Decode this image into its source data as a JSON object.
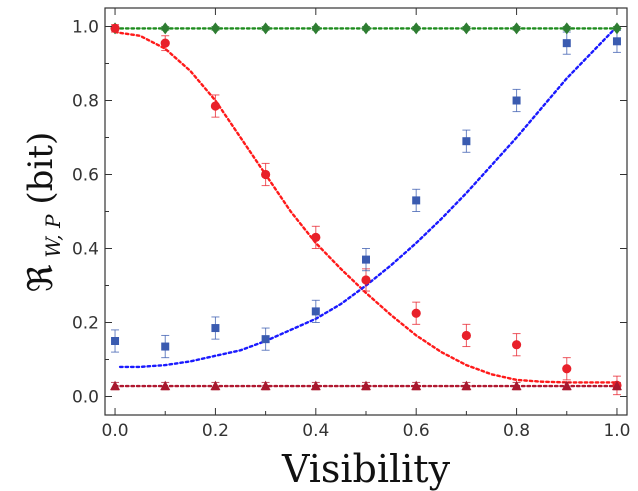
{
  "chart_data": {
    "type": "scatter",
    "title": "",
    "xlabel": "Visibility",
    "ylabel": "ℜ ",
    "ylabel_sub": "W, P",
    "ylabel_unit": "(bit)",
    "xlim": [
      -0.02,
      1.02
    ],
    "ylim": [
      -0.05,
      1.05
    ],
    "xticks": [
      "0.0",
      "0.2",
      "0.4",
      "0.6",
      "0.8",
      "1.0"
    ],
    "yticks": [
      "0.0",
      "0.2",
      "0.4",
      "0.6",
      "0.8",
      "1.0"
    ],
    "grid": false,
    "legend": "none",
    "series": [
      {
        "marker": "diamond",
        "color": "#2e7d32",
        "x": [
          0.0,
          0.1,
          0.2,
          0.3,
          0.4,
          0.5,
          0.6,
          0.7,
          0.8,
          0.9,
          1.0
        ],
        "y": [
          0.995,
          0.995,
          0.995,
          0.995,
          0.995,
          0.995,
          0.995,
          0.995,
          0.995,
          0.995,
          0.995
        ],
        "err": [
          0.005,
          0.005,
          0.005,
          0.005,
          0.005,
          0.005,
          0.005,
          0.005,
          0.005,
          0.005,
          0.005
        ]
      },
      {
        "marker": "circle",
        "color": "#e8202a",
        "x": [
          0.0,
          0.1,
          0.2,
          0.3,
          0.4,
          0.5,
          0.6,
          0.7,
          0.8,
          0.9,
          1.0
        ],
        "y": [
          0.995,
          0.955,
          0.785,
          0.6,
          0.43,
          0.315,
          0.225,
          0.165,
          0.14,
          0.075,
          0.03
        ],
        "err": [
          0.01,
          0.02,
          0.03,
          0.03,
          0.03,
          0.03,
          0.03,
          0.03,
          0.03,
          0.03,
          0.025
        ]
      },
      {
        "marker": "square",
        "color": "#3a5bb0",
        "x": [
          0.0,
          0.1,
          0.2,
          0.3,
          0.4,
          0.5,
          0.6,
          0.7,
          0.8,
          0.9,
          1.0
        ],
        "y": [
          0.15,
          0.135,
          0.185,
          0.155,
          0.23,
          0.37,
          0.53,
          0.69,
          0.8,
          0.955,
          0.96
        ],
        "err": [
          0.03,
          0.03,
          0.03,
          0.03,
          0.03,
          0.03,
          0.03,
          0.03,
          0.03,
          0.03,
          0.03
        ]
      },
      {
        "marker": "triangle",
        "color": "#a8182e",
        "x": [
          0.0,
          0.1,
          0.2,
          0.3,
          0.4,
          0.5,
          0.6,
          0.7,
          0.8,
          0.9,
          1.0
        ],
        "y": [
          0.028,
          0.028,
          0.028,
          0.028,
          0.028,
          0.028,
          0.028,
          0.028,
          0.028,
          0.028,
          0.028
        ],
        "err": [
          0.01,
          0.01,
          0.01,
          0.01,
          0.01,
          0.01,
          0.01,
          0.01,
          0.01,
          0.01,
          0.01
        ]
      }
    ],
    "fits": [
      {
        "color": "#1e8c1e",
        "x": [
          0.0,
          0.5,
          1.0
        ],
        "y": [
          0.995,
          0.995,
          0.995
        ]
      },
      {
        "color": "#ff1a1a",
        "x": [
          0.0,
          0.05,
          0.1,
          0.15,
          0.2,
          0.25,
          0.3,
          0.35,
          0.4,
          0.45,
          0.5,
          0.55,
          0.6,
          0.65,
          0.7,
          0.75,
          0.8,
          0.85,
          0.9,
          0.95,
          1.0
        ],
        "y": [
          0.985,
          0.975,
          0.94,
          0.88,
          0.8,
          0.7,
          0.6,
          0.5,
          0.415,
          0.345,
          0.28,
          0.22,
          0.165,
          0.12,
          0.085,
          0.06,
          0.045,
          0.04,
          0.038,
          0.038,
          0.038
        ]
      },
      {
        "color": "#1a1aff",
        "x": [
          0.01,
          0.05,
          0.1,
          0.15,
          0.2,
          0.25,
          0.3,
          0.35,
          0.4,
          0.45,
          0.5,
          0.55,
          0.6,
          0.65,
          0.7,
          0.75,
          0.8,
          0.85,
          0.9,
          0.95,
          1.0
        ],
        "y": [
          0.08,
          0.08,
          0.085,
          0.095,
          0.11,
          0.125,
          0.15,
          0.18,
          0.21,
          0.25,
          0.3,
          0.355,
          0.415,
          0.48,
          0.55,
          0.625,
          0.7,
          0.78,
          0.86,
          0.93,
          1.0
        ]
      },
      {
        "color": "#b01830",
        "x": [
          0.0,
          0.5,
          1.0
        ],
        "y": [
          0.028,
          0.028,
          0.028
        ]
      }
    ]
  }
}
